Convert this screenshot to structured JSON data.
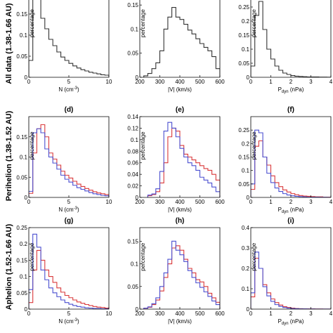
{
  "colors": {
    "all": "#333333",
    "red": "#d9383a",
    "blue": "#4a4fd0",
    "axis": "#000000"
  },
  "rows": [
    {
      "label": "All data (1.38-1.66 AU)"
    },
    {
      "label": "Perihelion (1.38-1.52 AU)"
    },
    {
      "label": "Aphelion (1.52-1.66 AU)"
    }
  ],
  "chart_data": [
    {
      "id": "a",
      "type": "histogram",
      "row": 0,
      "col": 0,
      "title": "",
      "xlabel": "N (cm",
      "xlabel_sup": "-3",
      "xlabel_tail": ")",
      "ylabel": "percentage",
      "xlim": [
        0,
        10
      ],
      "ylim": [
        0,
        0.2
      ],
      "xticks": [
        0,
        5,
        10
      ],
      "yticks": [
        0,
        0.05,
        0.1,
        0.15
      ],
      "bins": [
        0,
        0.5,
        1,
        1.5,
        2,
        2.5,
        3,
        3.5,
        4,
        4.5,
        5,
        5.5,
        6,
        6.5,
        7,
        7.5,
        8,
        8.5,
        9,
        9.5
      ],
      "width": 0.5,
      "series": [
        {
          "color": "all",
          "values": [
            0.04,
            0.195,
            0.185,
            0.14,
            0.115,
            0.09,
            0.075,
            0.06,
            0.048,
            0.04,
            0.033,
            0.027,
            0.022,
            0.018,
            0.015,
            0.012,
            0.01,
            0.008,
            0.006,
            0.005
          ]
        }
      ]
    },
    {
      "id": "b",
      "type": "histogram",
      "row": 0,
      "col": 1,
      "title": "",
      "xlabel": "|V| (km/s)",
      "xlabel_sup": "",
      "xlabel_tail": "",
      "ylabel": "percentage",
      "xlim": [
        200,
        600
      ],
      "ylim": [
        0,
        0.175
      ],
      "xticks": [
        200,
        300,
        400,
        500,
        600
      ],
      "yticks": [
        0,
        0.05,
        0.1,
        0.15
      ],
      "bins": [
        220,
        240,
        260,
        280,
        300,
        320,
        340,
        360,
        380,
        400,
        420,
        440,
        460,
        480,
        500,
        520,
        540,
        560,
        580
      ],
      "width": 20,
      "series": [
        {
          "color": "all",
          "values": [
            0.003,
            0.008,
            0.018,
            0.03,
            0.055,
            0.1,
            0.125,
            0.145,
            0.125,
            0.12,
            0.11,
            0.098,
            0.09,
            0.08,
            0.07,
            0.062,
            0.055,
            0.043,
            0.018
          ]
        }
      ]
    },
    {
      "id": "c",
      "type": "histogram",
      "row": 0,
      "col": 2,
      "title": "",
      "xlabel": "P",
      "xlabel_sub": "dyn",
      "xlabel_tail": " (nPa)",
      "ylabel": "percentage",
      "xlim": [
        0,
        4
      ],
      "ylim": [
        0,
        0.3
      ],
      "xticks": [
        0,
        1,
        2,
        3,
        4
      ],
      "yticks": [
        0,
        0.05,
        0.1,
        0.15,
        0.2,
        0.25
      ],
      "bins": [
        0,
        0.2,
        0.4,
        0.6,
        0.8,
        1.0,
        1.2,
        1.4,
        1.6,
        1.8,
        2.0,
        2.2,
        2.4,
        2.6,
        2.8,
        3.0,
        3.2,
        3.4,
        3.6,
        3.8
      ],
      "width": 0.2,
      "series": [
        {
          "color": "all",
          "values": [
            0.04,
            0.22,
            0.27,
            0.17,
            0.1,
            0.065,
            0.04,
            0.025,
            0.015,
            0.01,
            0.006,
            0.004,
            0.003,
            0.002,
            0.001,
            0.001,
            0.001,
            0.0005,
            0.0005,
            0.0003
          ]
        }
      ]
    },
    {
      "id": "d",
      "type": "histogram",
      "row": 1,
      "col": 0,
      "title": "(d)",
      "xlabel": "N (cm",
      "xlabel_sup": "-3",
      "xlabel_tail": ")",
      "ylabel": "percentage",
      "xlim": [
        0,
        10
      ],
      "ylim": [
        0,
        0.2
      ],
      "xticks": [
        0,
        5,
        10
      ],
      "yticks": [
        0,
        0.05,
        0.1,
        0.15
      ],
      "bins": [
        0,
        0.5,
        1,
        1.5,
        2,
        2.5,
        3,
        3.5,
        4,
        4.5,
        5,
        5.5,
        6,
        6.5,
        7,
        7.5,
        8,
        8.5,
        9,
        9.5
      ],
      "width": 0.5,
      "series": [
        {
          "color": "red",
          "values": [
            0.01,
            0.11,
            0.17,
            0.18,
            0.15,
            0.11,
            0.095,
            0.08,
            0.065,
            0.055,
            0.048,
            0.04,
            0.033,
            0.027,
            0.022,
            0.018,
            0.014,
            0.011,
            0.009,
            0.007
          ]
        },
        {
          "color": "blue",
          "values": [
            0.015,
            0.16,
            0.17,
            0.16,
            0.12,
            0.1,
            0.085,
            0.07,
            0.055,
            0.045,
            0.038,
            0.03,
            0.024,
            0.02,
            0.016,
            0.012,
            0.009,
            0.007,
            0.005,
            0.004
          ]
        }
      ]
    },
    {
      "id": "e",
      "type": "histogram",
      "row": 1,
      "col": 1,
      "title": "(e)",
      "xlabel": "|V| (km/s)",
      "xlabel_sup": "",
      "xlabel_tail": "",
      "ylabel": "percentage",
      "xlim": [
        200,
        600
      ],
      "ylim": [
        0,
        0.14
      ],
      "xticks": [
        200,
        300,
        400,
        500,
        600
      ],
      "yticks": [
        0,
        0.02,
        0.04,
        0.06,
        0.08,
        0.1,
        0.12,
        0.14
      ],
      "bins": [
        240,
        260,
        280,
        300,
        320,
        340,
        360,
        380,
        400,
        420,
        440,
        460,
        480,
        500,
        520,
        540,
        560,
        580
      ],
      "width": 20,
      "series": [
        {
          "color": "red",
          "values": [
            0.003,
            0.005,
            0.01,
            0.025,
            0.06,
            0.105,
            0.12,
            0.115,
            0.09,
            0.075,
            0.07,
            0.065,
            0.06,
            0.055,
            0.05,
            0.047,
            0.04,
            0.03
          ]
        },
        {
          "color": "blue",
          "values": [
            0.004,
            0.006,
            0.015,
            0.045,
            0.115,
            0.13,
            0.12,
            0.105,
            0.085,
            0.07,
            0.06,
            0.055,
            0.047,
            0.035,
            0.03,
            0.025,
            0.018,
            0.01
          ]
        }
      ]
    },
    {
      "id": "f",
      "type": "histogram",
      "row": 1,
      "col": 2,
      "title": "(f)",
      "xlabel": "P",
      "xlabel_sub": "dyn",
      "xlabel_tail": " (nPa)",
      "ylabel": "percentage",
      "xlim": [
        0,
        4
      ],
      "ylim": [
        0,
        0.3
      ],
      "xticks": [
        0,
        1,
        2,
        3,
        4
      ],
      "yticks": [
        0,
        0.05,
        0.1,
        0.15,
        0.2,
        0.25
      ],
      "bins": [
        0,
        0.2,
        0.4,
        0.6,
        0.8,
        1.0,
        1.2,
        1.4,
        1.6,
        1.8,
        2.0,
        2.2,
        2.4,
        2.6,
        2.8,
        3.0,
        3.2,
        3.4,
        3.6,
        3.8
      ],
      "width": 0.2,
      "series": [
        {
          "color": "red",
          "values": [
            0.03,
            0.19,
            0.21,
            0.15,
            0.12,
            0.08,
            0.055,
            0.04,
            0.028,
            0.02,
            0.014,
            0.01,
            0.007,
            0.005,
            0.004,
            0.003,
            0.002,
            0.002,
            0.001,
            0.001
          ]
        },
        {
          "color": "blue",
          "values": [
            0.05,
            0.25,
            0.24,
            0.15,
            0.09,
            0.055,
            0.035,
            0.022,
            0.014,
            0.009,
            0.006,
            0.004,
            0.003,
            0.002,
            0.001,
            0.001,
            0.001,
            0.0005,
            0.0005,
            0.0003
          ]
        }
      ]
    },
    {
      "id": "g",
      "type": "histogram",
      "row": 2,
      "col": 0,
      "title": "(g)",
      "xlabel": "N (cm",
      "xlabel_sup": "-3",
      "xlabel_tail": ")",
      "ylabel": "percentage",
      "xlim": [
        0,
        10
      ],
      "ylim": [
        0,
        0.25
      ],
      "xticks": [
        0,
        5,
        10
      ],
      "yticks": [
        0,
        0.05,
        0.1,
        0.15,
        0.2,
        0.25
      ],
      "bins": [
        0,
        0.5,
        1,
        1.5,
        2,
        2.5,
        3,
        3.5,
        4,
        4.5,
        5,
        5.5,
        6,
        6.5,
        7,
        7.5,
        8,
        8.5,
        9,
        9.5
      ],
      "width": 0.5,
      "series": [
        {
          "color": "red",
          "values": [
            0.02,
            0.12,
            0.18,
            0.15,
            0.12,
            0.1,
            0.082,
            0.065,
            0.052,
            0.042,
            0.035,
            0.028,
            0.022,
            0.018,
            0.014,
            0.011,
            0.008,
            0.006,
            0.005,
            0.003
          ]
        },
        {
          "color": "blue",
          "values": [
            0.06,
            0.23,
            0.19,
            0.12,
            0.09,
            0.065,
            0.05,
            0.038,
            0.028,
            0.02,
            0.015,
            0.011,
            0.008,
            0.006,
            0.004,
            0.003,
            0.002,
            0.002,
            0.001,
            0.001
          ]
        }
      ]
    },
    {
      "id": "h",
      "type": "histogram",
      "row": 2,
      "col": 1,
      "title": "(h)",
      "xlabel": "|V| (km/s)",
      "xlabel_sup": "",
      "xlabel_tail": "",
      "ylabel": "percentage",
      "xlim": [
        200,
        600
      ],
      "ylim": [
        0,
        0.18
      ],
      "xticks": [
        200,
        300,
        400,
        500,
        600
      ],
      "yticks": [
        0,
        0.05,
        0.1,
        0.15
      ],
      "bins": [
        220,
        240,
        260,
        280,
        300,
        320,
        340,
        360,
        380,
        400,
        420,
        440,
        460,
        480,
        500,
        520,
        540,
        560,
        580
      ],
      "width": 20,
      "series": [
        {
          "color": "red",
          "values": [
            0.002,
            0.004,
            0.01,
            0.02,
            0.04,
            0.07,
            0.1,
            0.135,
            0.14,
            0.13,
            0.11,
            0.09,
            0.08,
            0.065,
            0.06,
            0.05,
            0.035,
            0.025,
            0.015
          ]
        },
        {
          "color": "blue",
          "values": [
            0.002,
            0.005,
            0.012,
            0.025,
            0.05,
            0.08,
            0.11,
            0.15,
            0.13,
            0.12,
            0.105,
            0.085,
            0.07,
            0.058,
            0.048,
            0.038,
            0.028,
            0.018,
            0.01
          ]
        }
      ]
    },
    {
      "id": "i",
      "type": "histogram",
      "row": 2,
      "col": 2,
      "title": "(i)",
      "xlabel": "P",
      "xlabel_sub": "dyn",
      "xlabel_tail": " (nPa)",
      "ylabel": "percentage",
      "xlim": [
        0,
        4
      ],
      "ylim": [
        0,
        0.4
      ],
      "xticks": [
        0,
        1,
        2,
        3,
        4
      ],
      "yticks": [
        0,
        0.1,
        0.2,
        0.3,
        0.4
      ],
      "bins": [
        0,
        0.2,
        0.4,
        0.6,
        0.8,
        1.0,
        1.2,
        1.4,
        1.6,
        1.8,
        2.0,
        2.2,
        2.4,
        2.6,
        2.8,
        3.0,
        3.2,
        3.4,
        3.6,
        3.8
      ],
      "width": 0.2,
      "series": [
        {
          "color": "red",
          "values": [
            0.06,
            0.25,
            0.2,
            0.12,
            0.08,
            0.05,
            0.032,
            0.02,
            0.012,
            0.008,
            0.005,
            0.003,
            0.002,
            0.001,
            0.001,
            0.001,
            0.0005,
            0.0005,
            0.0003,
            0.0002
          ]
        },
        {
          "color": "blue",
          "values": [
            0.08,
            0.28,
            0.2,
            0.11,
            0.065,
            0.038,
            0.022,
            0.013,
            0.008,
            0.005,
            0.003,
            0.002,
            0.001,
            0.001,
            0.0005,
            0.0005,
            0.0003,
            0.0002,
            0.0001,
            0.0001
          ]
        }
      ]
    }
  ]
}
